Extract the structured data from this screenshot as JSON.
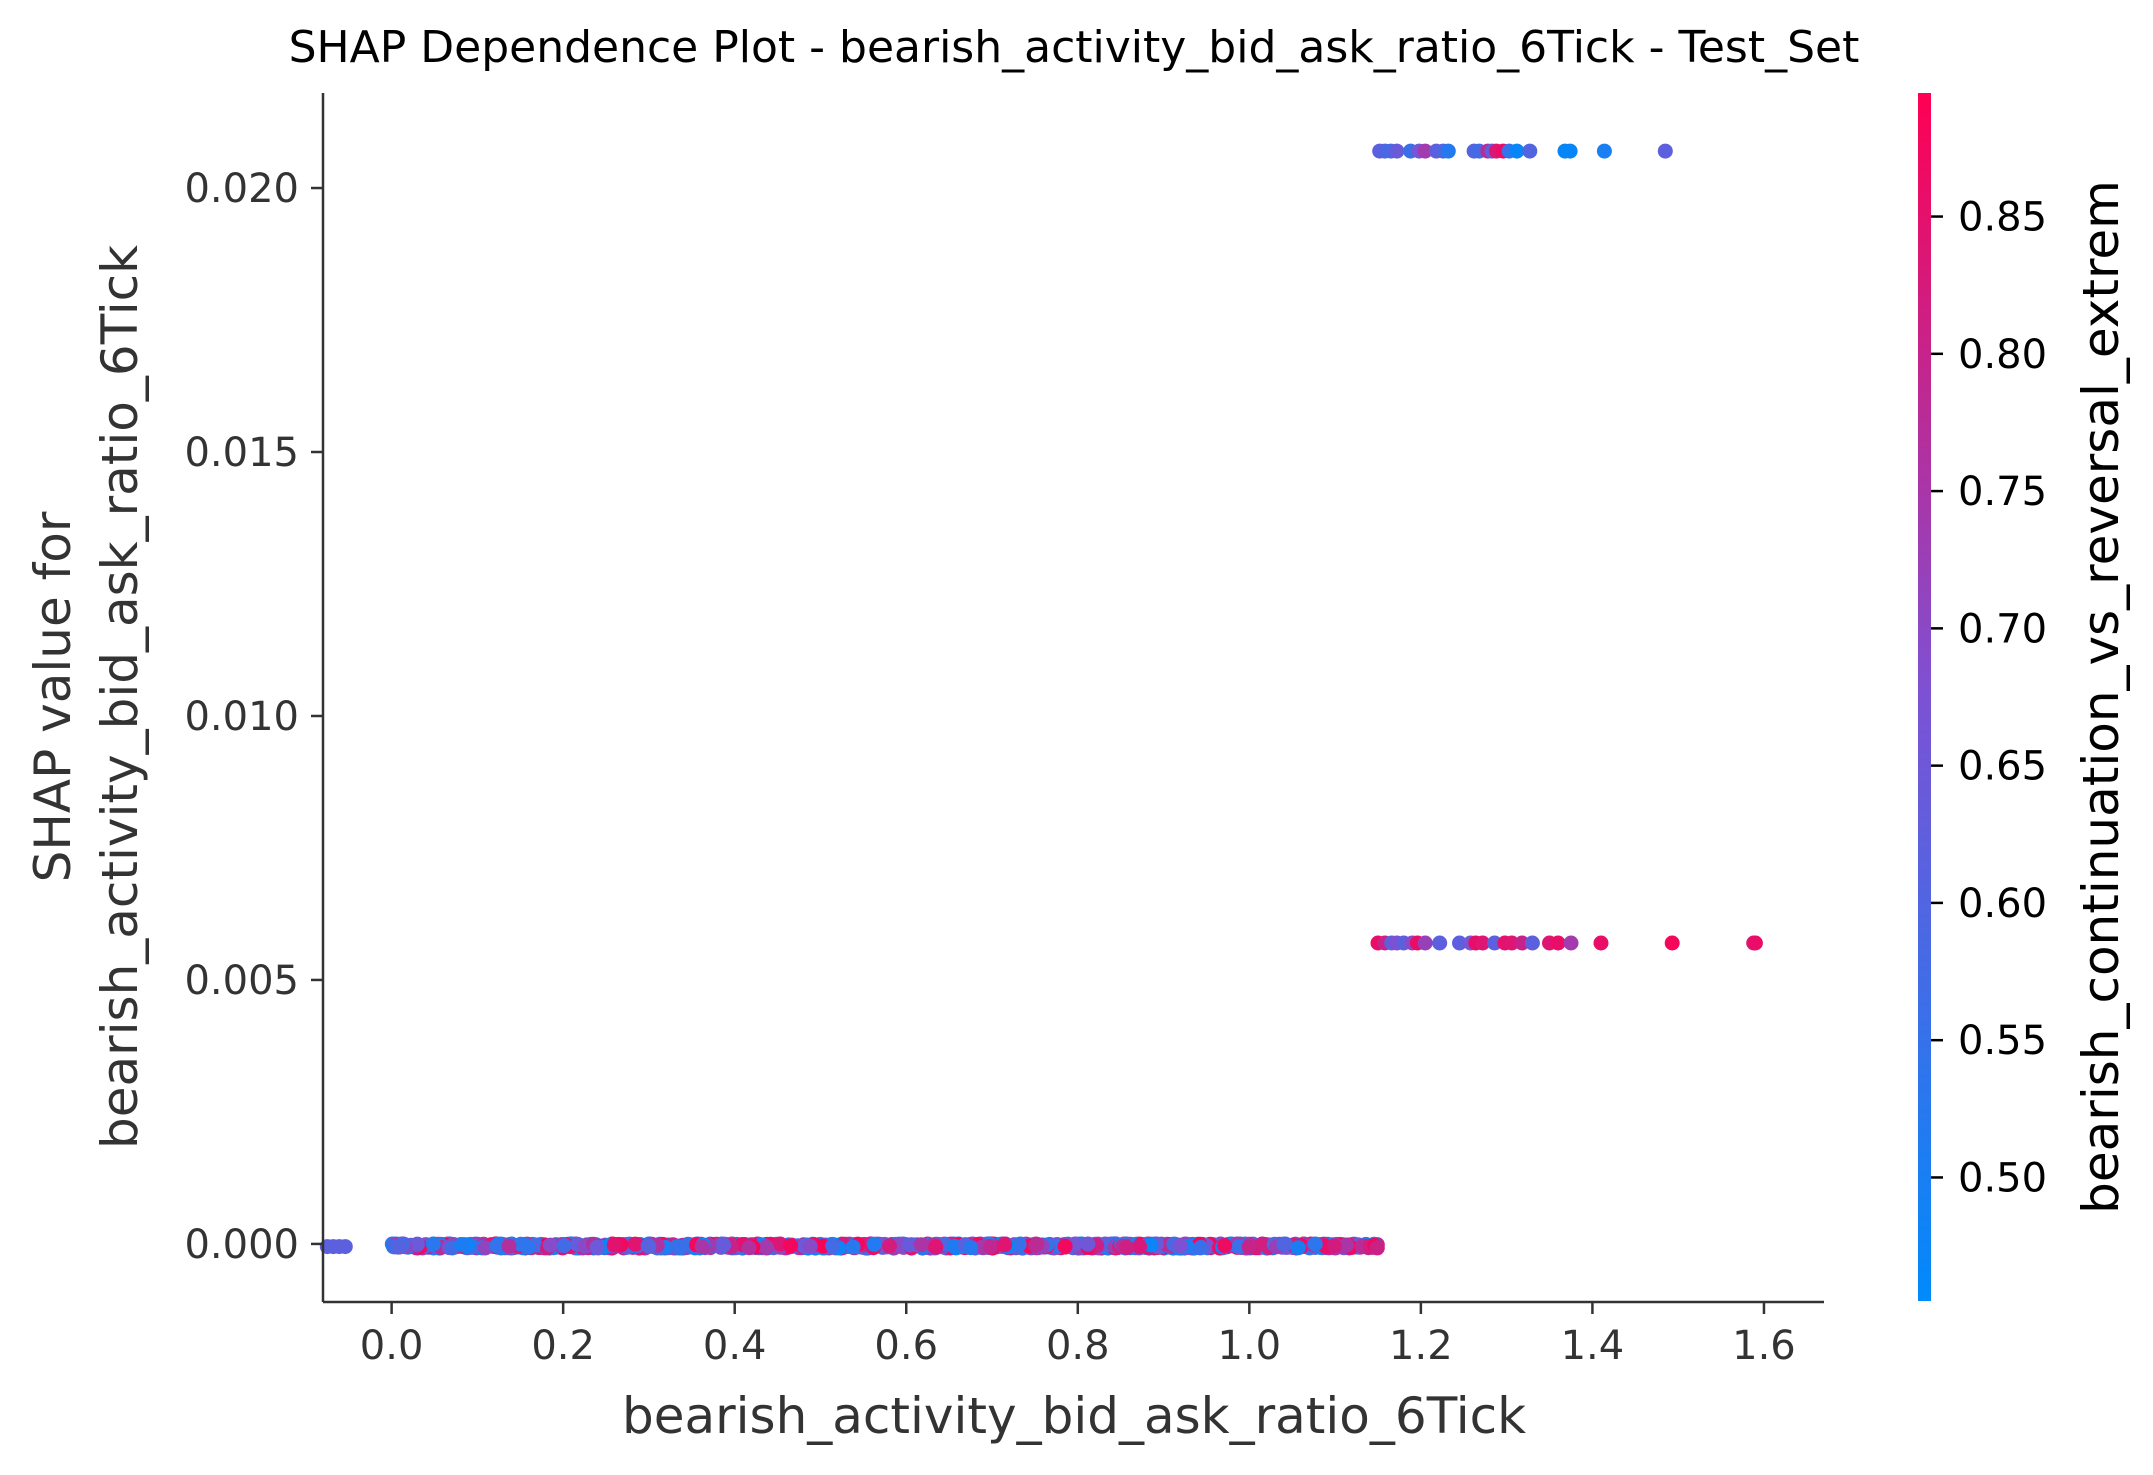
{
  "chart_data": {
    "type": "scatter",
    "title": "SHAP Dependence Plot - bearish_activity_bid_ask_ratio_6Tick - Test_Set",
    "xlabel": "bearish_activity_bid_ask_ratio_6Tick",
    "ylabel_line1": "SHAP value for",
    "ylabel_line2": "bearish_activity_bid_ask_ratio_6Tick",
    "xlim": [
      -0.08,
      1.67
    ],
    "ylim": [
      -0.0011,
      0.0218
    ],
    "x_ticks": [
      {
        "value": 0.0,
        "label": "0.0"
      },
      {
        "value": 0.2,
        "label": "0.2"
      },
      {
        "value": 0.4,
        "label": "0.4"
      },
      {
        "value": 0.6,
        "label": "0.6"
      },
      {
        "value": 0.8,
        "label": "0.8"
      },
      {
        "value": 1.0,
        "label": "1.0"
      },
      {
        "value": 1.2,
        "label": "1.2"
      },
      {
        "value": 1.4,
        "label": "1.4"
      },
      {
        "value": 1.6,
        "label": "1.6"
      }
    ],
    "y_ticks": [
      {
        "value": 0.0,
        "label": "0.000"
      },
      {
        "value": 0.005,
        "label": "0.005"
      },
      {
        "value": 0.01,
        "label": "0.010"
      },
      {
        "value": 0.015,
        "label": "0.015"
      },
      {
        "value": 0.02,
        "label": "0.020"
      }
    ],
    "colorbar": {
      "label": "bearish_continuation_vs_reversal_extrem",
      "range": [
        0.455,
        0.895
      ],
      "color_low": "#008afb",
      "color_mid": "#7c52d4",
      "color_high": "#ff0052",
      "ticks": [
        {
          "value": 0.5,
          "label": "0.50"
        },
        {
          "value": 0.55,
          "label": "0.55"
        },
        {
          "value": 0.6,
          "label": "0.60"
        },
        {
          "value": 0.65,
          "label": "0.65"
        },
        {
          "value": 0.7,
          "label": "0.70"
        },
        {
          "value": 0.75,
          "label": "0.75"
        },
        {
          "value": 0.8,
          "label": "0.80"
        },
        {
          "value": 0.85,
          "label": "0.85"
        }
      ]
    },
    "grid": false,
    "series": [
      {
        "points": [
          {
            "x": 1.152,
            "y": 0.0207,
            "c": 0.62
          },
          {
            "x": 1.158,
            "y": 0.0207,
            "c": 0.6
          },
          {
            "x": 1.165,
            "y": 0.0207,
            "c": 0.58
          },
          {
            "x": 1.172,
            "y": 0.0207,
            "c": 0.64
          },
          {
            "x": 1.188,
            "y": 0.0207,
            "c": 0.56
          },
          {
            "x": 1.198,
            "y": 0.0207,
            "c": 0.66
          },
          {
            "x": 1.205,
            "y": 0.0207,
            "c": 0.74
          },
          {
            "x": 1.218,
            "y": 0.0207,
            "c": 0.62
          },
          {
            "x": 1.226,
            "y": 0.0207,
            "c": 0.6
          },
          {
            "x": 1.232,
            "y": 0.0207,
            "c": 0.52
          },
          {
            "x": 1.262,
            "y": 0.0207,
            "c": 0.6
          },
          {
            "x": 1.268,
            "y": 0.0207,
            "c": 0.58
          },
          {
            "x": 1.278,
            "y": 0.0207,
            "c": 0.78
          },
          {
            "x": 1.283,
            "y": 0.0207,
            "c": 0.62
          },
          {
            "x": 1.288,
            "y": 0.0207,
            "c": 0.84
          },
          {
            "x": 1.296,
            "y": 0.0207,
            "c": 0.86
          },
          {
            "x": 1.303,
            "y": 0.0207,
            "c": 0.55
          },
          {
            "x": 1.312,
            "y": 0.0207,
            "c": 0.47
          },
          {
            "x": 1.327,
            "y": 0.0207,
            "c": 0.6
          },
          {
            "x": 1.368,
            "y": 0.0207,
            "c": 0.47
          },
          {
            "x": 1.374,
            "y": 0.0207,
            "c": 0.47
          },
          {
            "x": 1.414,
            "y": 0.0207,
            "c": 0.5
          },
          {
            "x": 1.485,
            "y": 0.0207,
            "c": 0.62
          },
          {
            "x": 1.15,
            "y": 0.0057,
            "c": 0.86
          },
          {
            "x": 1.158,
            "y": 0.0057,
            "c": 0.8
          },
          {
            "x": 1.166,
            "y": 0.0057,
            "c": 0.62
          },
          {
            "x": 1.172,
            "y": 0.0057,
            "c": 0.68
          },
          {
            "x": 1.18,
            "y": 0.0057,
            "c": 0.62
          },
          {
            "x": 1.19,
            "y": 0.0057,
            "c": 0.7
          },
          {
            "x": 1.196,
            "y": 0.0057,
            "c": 0.86
          },
          {
            "x": 1.205,
            "y": 0.0057,
            "c": 0.72
          },
          {
            "x": 1.222,
            "y": 0.0057,
            "c": 0.62
          },
          {
            "x": 1.245,
            "y": 0.0057,
            "c": 0.62
          },
          {
            "x": 1.258,
            "y": 0.0057,
            "c": 0.66
          },
          {
            "x": 1.264,
            "y": 0.0057,
            "c": 0.86
          },
          {
            "x": 1.272,
            "y": 0.0057,
            "c": 0.84
          },
          {
            "x": 1.286,
            "y": 0.0057,
            "c": 0.62
          },
          {
            "x": 1.298,
            "y": 0.0057,
            "c": 0.85
          },
          {
            "x": 1.306,
            "y": 0.0057,
            "c": 0.84
          },
          {
            "x": 1.318,
            "y": 0.0057,
            "c": 0.8
          },
          {
            "x": 1.33,
            "y": 0.0057,
            "c": 0.62
          },
          {
            "x": 1.35,
            "y": 0.0057,
            "c": 0.84
          },
          {
            "x": 1.36,
            "y": 0.0057,
            "c": 0.86
          },
          {
            "x": 1.375,
            "y": 0.0057,
            "c": 0.74
          },
          {
            "x": 1.41,
            "y": 0.0057,
            "c": 0.86
          },
          {
            "x": 1.493,
            "y": 0.0057,
            "c": 0.88
          },
          {
            "x": 1.588,
            "y": 0.0057,
            "c": 0.82
          },
          {
            "x": 1.59,
            "y": 0.0057,
            "c": 0.86
          }
        ],
        "dense_band": {
          "x_range": [
            0.0,
            1.15
          ],
          "y_center": 0.0,
          "y_jitter": 8e-05,
          "c_range": [
            0.46,
            0.89
          ],
          "approx_points": 1400
        },
        "stub_points": [
          {
            "x": -0.075,
            "y": -5e-05,
            "c": 0.62
          },
          {
            "x": -0.068,
            "y": -5e-05,
            "c": 0.62
          },
          {
            "x": -0.061,
            "y": -5e-05,
            "c": 0.62
          },
          {
            "x": -0.054,
            "y": -5e-05,
            "c": 0.62
          }
        ]
      }
    ]
  }
}
